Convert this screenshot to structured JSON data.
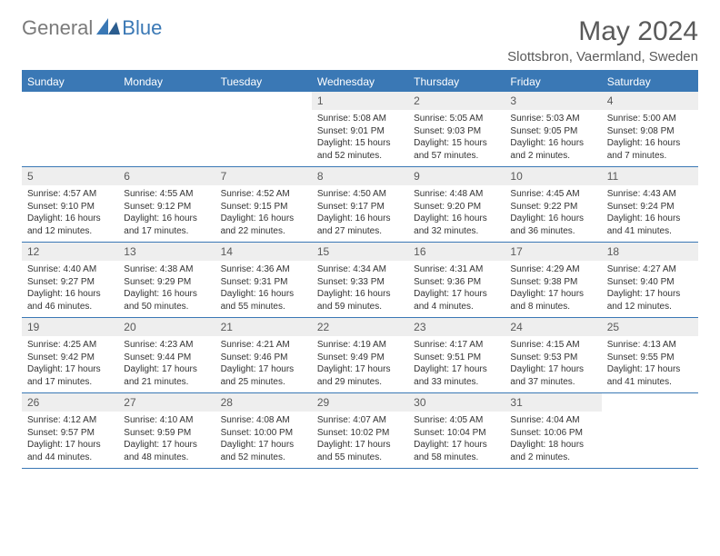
{
  "logo": {
    "part1": "General",
    "part2": "Blue"
  },
  "title": "May 2024",
  "location": "Slottsbron, Vaermland, Sweden",
  "day_names": [
    "Sunday",
    "Monday",
    "Tuesday",
    "Wednesday",
    "Thursday",
    "Friday",
    "Saturday"
  ],
  "colors": {
    "brand": "#3a78b5",
    "header_bg": "#3a78b5",
    "header_fg": "#ffffff",
    "daynum_bg": "#eeeeee",
    "text": "#333333"
  },
  "layout": {
    "first_weekday_index": 3,
    "days_in_month": 31
  },
  "days": [
    {
      "n": 1,
      "sunrise": "5:08 AM",
      "sunset": "9:01 PM",
      "daylight": "15 hours and 52 minutes."
    },
    {
      "n": 2,
      "sunrise": "5:05 AM",
      "sunset": "9:03 PM",
      "daylight": "15 hours and 57 minutes."
    },
    {
      "n": 3,
      "sunrise": "5:03 AM",
      "sunset": "9:05 PM",
      "daylight": "16 hours and 2 minutes."
    },
    {
      "n": 4,
      "sunrise": "5:00 AM",
      "sunset": "9:08 PM",
      "daylight": "16 hours and 7 minutes."
    },
    {
      "n": 5,
      "sunrise": "4:57 AM",
      "sunset": "9:10 PM",
      "daylight": "16 hours and 12 minutes."
    },
    {
      "n": 6,
      "sunrise": "4:55 AM",
      "sunset": "9:12 PM",
      "daylight": "16 hours and 17 minutes."
    },
    {
      "n": 7,
      "sunrise": "4:52 AM",
      "sunset": "9:15 PM",
      "daylight": "16 hours and 22 minutes."
    },
    {
      "n": 8,
      "sunrise": "4:50 AM",
      "sunset": "9:17 PM",
      "daylight": "16 hours and 27 minutes."
    },
    {
      "n": 9,
      "sunrise": "4:48 AM",
      "sunset": "9:20 PM",
      "daylight": "16 hours and 32 minutes."
    },
    {
      "n": 10,
      "sunrise": "4:45 AM",
      "sunset": "9:22 PM",
      "daylight": "16 hours and 36 minutes."
    },
    {
      "n": 11,
      "sunrise": "4:43 AM",
      "sunset": "9:24 PM",
      "daylight": "16 hours and 41 minutes."
    },
    {
      "n": 12,
      "sunrise": "4:40 AM",
      "sunset": "9:27 PM",
      "daylight": "16 hours and 46 minutes."
    },
    {
      "n": 13,
      "sunrise": "4:38 AM",
      "sunset": "9:29 PM",
      "daylight": "16 hours and 50 minutes."
    },
    {
      "n": 14,
      "sunrise": "4:36 AM",
      "sunset": "9:31 PM",
      "daylight": "16 hours and 55 minutes."
    },
    {
      "n": 15,
      "sunrise": "4:34 AM",
      "sunset": "9:33 PM",
      "daylight": "16 hours and 59 minutes."
    },
    {
      "n": 16,
      "sunrise": "4:31 AM",
      "sunset": "9:36 PM",
      "daylight": "17 hours and 4 minutes."
    },
    {
      "n": 17,
      "sunrise": "4:29 AM",
      "sunset": "9:38 PM",
      "daylight": "17 hours and 8 minutes."
    },
    {
      "n": 18,
      "sunrise": "4:27 AM",
      "sunset": "9:40 PM",
      "daylight": "17 hours and 12 minutes."
    },
    {
      "n": 19,
      "sunrise": "4:25 AM",
      "sunset": "9:42 PM",
      "daylight": "17 hours and 17 minutes."
    },
    {
      "n": 20,
      "sunrise": "4:23 AM",
      "sunset": "9:44 PM",
      "daylight": "17 hours and 21 minutes."
    },
    {
      "n": 21,
      "sunrise": "4:21 AM",
      "sunset": "9:46 PM",
      "daylight": "17 hours and 25 minutes."
    },
    {
      "n": 22,
      "sunrise": "4:19 AM",
      "sunset": "9:49 PM",
      "daylight": "17 hours and 29 minutes."
    },
    {
      "n": 23,
      "sunrise": "4:17 AM",
      "sunset": "9:51 PM",
      "daylight": "17 hours and 33 minutes."
    },
    {
      "n": 24,
      "sunrise": "4:15 AM",
      "sunset": "9:53 PM",
      "daylight": "17 hours and 37 minutes."
    },
    {
      "n": 25,
      "sunrise": "4:13 AM",
      "sunset": "9:55 PM",
      "daylight": "17 hours and 41 minutes."
    },
    {
      "n": 26,
      "sunrise": "4:12 AM",
      "sunset": "9:57 PM",
      "daylight": "17 hours and 44 minutes."
    },
    {
      "n": 27,
      "sunrise": "4:10 AM",
      "sunset": "9:59 PM",
      "daylight": "17 hours and 48 minutes."
    },
    {
      "n": 28,
      "sunrise": "4:08 AM",
      "sunset": "10:00 PM",
      "daylight": "17 hours and 52 minutes."
    },
    {
      "n": 29,
      "sunrise": "4:07 AM",
      "sunset": "10:02 PM",
      "daylight": "17 hours and 55 minutes."
    },
    {
      "n": 30,
      "sunrise": "4:05 AM",
      "sunset": "10:04 PM",
      "daylight": "17 hours and 58 minutes."
    },
    {
      "n": 31,
      "sunrise": "4:04 AM",
      "sunset": "10:06 PM",
      "daylight": "18 hours and 2 minutes."
    }
  ],
  "labels": {
    "sunrise": "Sunrise:",
    "sunset": "Sunset:",
    "daylight": "Daylight:"
  }
}
